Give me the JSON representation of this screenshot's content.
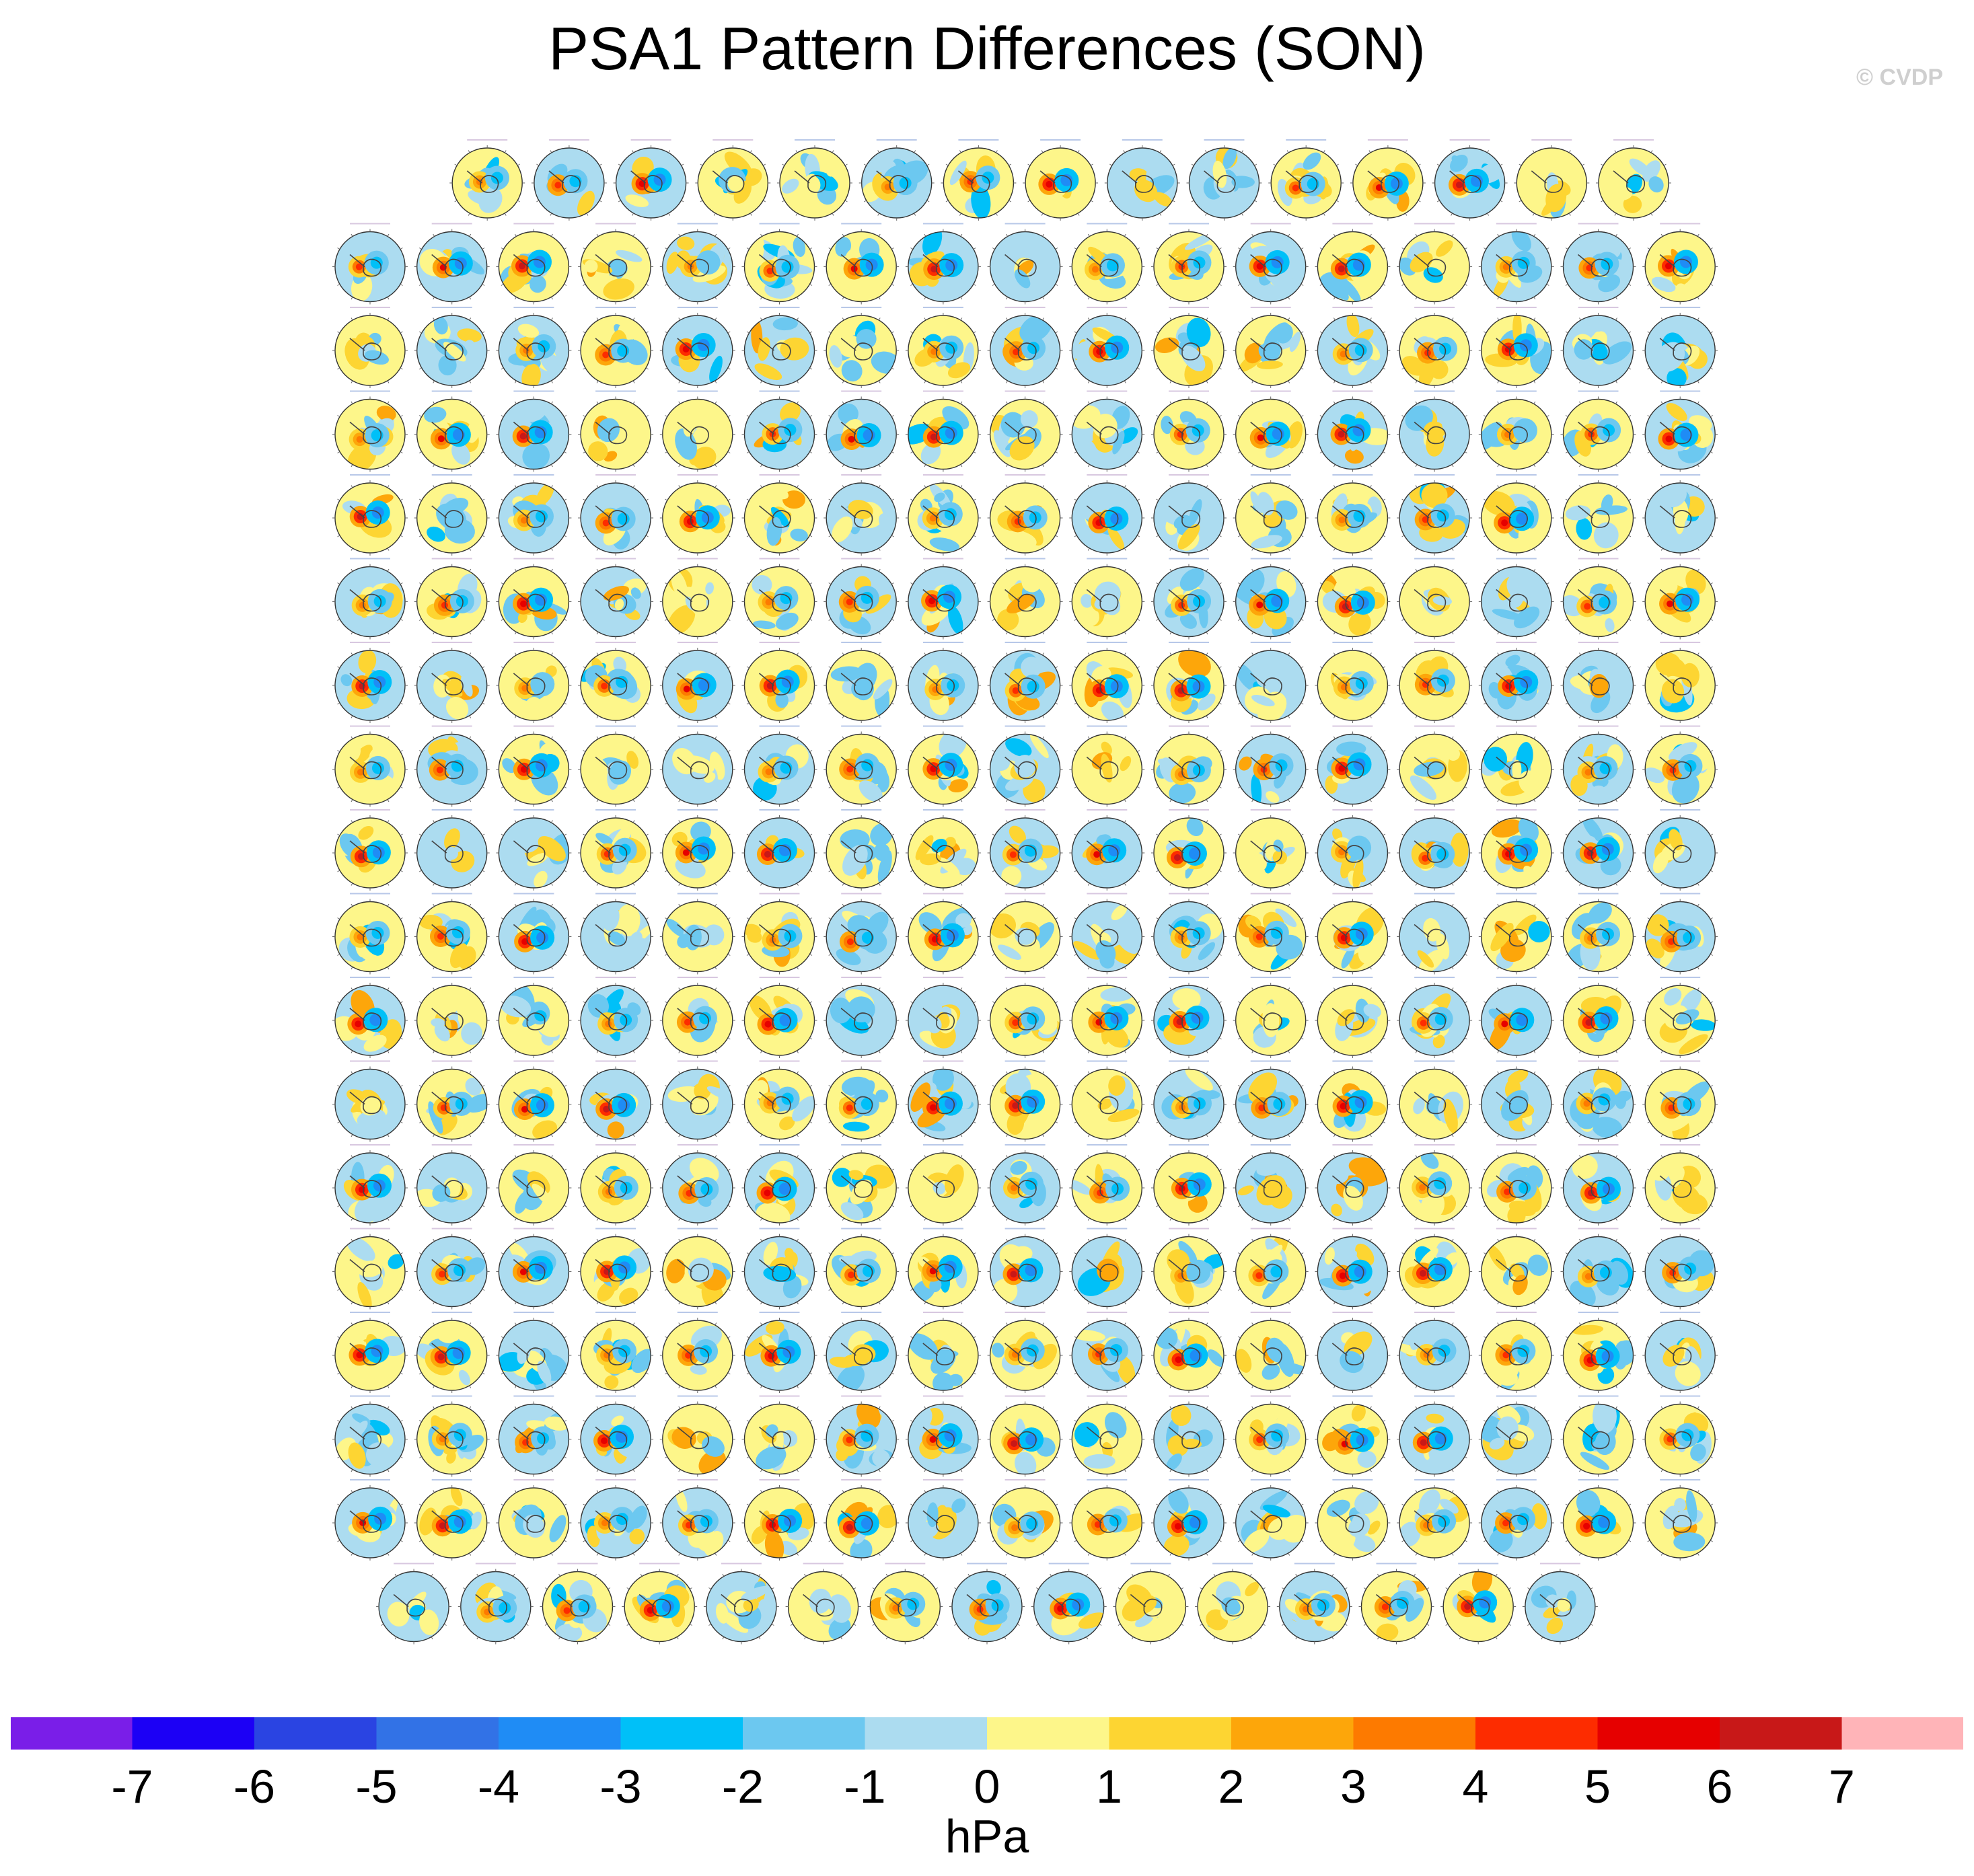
{
  "title": "PSA1 Pattern Differences (SON)",
  "credit": "© CVDP",
  "chart_data": {
    "type": "heatmap",
    "description_kind": "small-multiples polar stereographic SLP difference maps",
    "rows": [
      15,
      17,
      17,
      17,
      17,
      17,
      17,
      17,
      17,
      17,
      17,
      17,
      17,
      17,
      17,
      17,
      17,
      15
    ],
    "total_panels": 302,
    "colorbar": {
      "units": "hPa",
      "levels": [
        -7,
        -6,
        -5,
        -4,
        -3,
        -2,
        -1,
        0,
        1,
        2,
        3,
        4,
        5,
        6,
        7
      ],
      "tick_labels": [
        "-7",
        "-6",
        "-5",
        "-4",
        "-3",
        "-2",
        "-1",
        "0",
        "1",
        "2",
        "3",
        "4",
        "5",
        "6",
        "7"
      ],
      "colors": [
        "#7a1ee8",
        "#1c00f5",
        "#2a44e2",
        "#3272e6",
        "#1f8cf5",
        "#00c0f8",
        "#6cc8f0",
        "#acdcf0",
        "#fdf68a",
        "#fdd532",
        "#fda60a",
        "#fd7a00",
        "#fd2c00",
        "#e60000",
        "#c81818",
        "#ffb4b8"
      ]
    }
  }
}
